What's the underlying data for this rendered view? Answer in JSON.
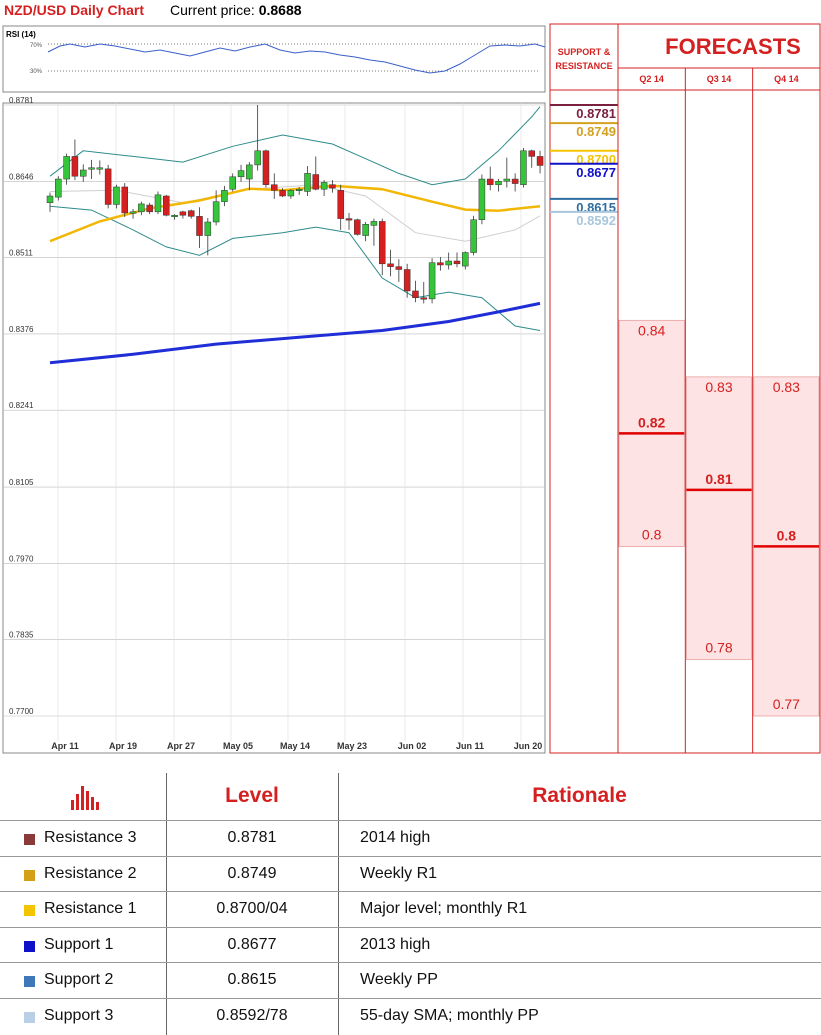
{
  "header": {
    "title": "NZD/USD Daily Chart",
    "price_label": "Current price:",
    "price_value": "0.8688"
  },
  "rsi": {
    "label": "RSI (14)",
    "upper": "70%",
    "lower": "30%"
  },
  "chart_data": {
    "type": "candlestick",
    "title": "NZD/USD Daily Chart",
    "y_tick_labels": [
      "0.8781",
      "0.8646",
      "0.8511",
      "0.8376",
      "0.8241",
      "0.8105",
      "0.7970",
      "0.7835",
      "0.7700"
    ],
    "ylim": [
      0.77,
      0.8781
    ],
    "x_tick_labels": [
      "Apr 11",
      "Apr 19",
      "Apr 27",
      "May 05",
      "May 14",
      "May 23",
      "Jun 02",
      "Jun 11",
      "Jun 20"
    ],
    "candles": [
      {
        "o": 0.8608,
        "h": 0.8626,
        "l": 0.8592,
        "c": 0.862
      },
      {
        "o": 0.8618,
        "h": 0.8655,
        "l": 0.8612,
        "c": 0.865
      },
      {
        "o": 0.865,
        "h": 0.8695,
        "l": 0.864,
        "c": 0.869
      },
      {
        "o": 0.869,
        "h": 0.872,
        "l": 0.8648,
        "c": 0.8655
      },
      {
        "o": 0.8655,
        "h": 0.8676,
        "l": 0.8645,
        "c": 0.8666
      },
      {
        "o": 0.8668,
        "h": 0.8684,
        "l": 0.865,
        "c": 0.867
      },
      {
        "o": 0.867,
        "h": 0.8683,
        "l": 0.8658,
        "c": 0.867
      },
      {
        "o": 0.8668,
        "h": 0.8675,
        "l": 0.8598,
        "c": 0.8605
      },
      {
        "o": 0.8605,
        "h": 0.864,
        "l": 0.8598,
        "c": 0.8636
      },
      {
        "o": 0.8636,
        "h": 0.8643,
        "l": 0.8583,
        "c": 0.859
      },
      {
        "o": 0.859,
        "h": 0.8597,
        "l": 0.858,
        "c": 0.8592
      },
      {
        "o": 0.8592,
        "h": 0.861,
        "l": 0.8586,
        "c": 0.8606
      },
      {
        "o": 0.8604,
        "h": 0.8608,
        "l": 0.8588,
        "c": 0.8592
      },
      {
        "o": 0.8592,
        "h": 0.8628,
        "l": 0.8588,
        "c": 0.8622
      },
      {
        "o": 0.862,
        "h": 0.8622,
        "l": 0.8584,
        "c": 0.8586
      },
      {
        "o": 0.8586,
        "h": 0.8588,
        "l": 0.8578,
        "c": 0.8586
      },
      {
        "o": 0.8592,
        "h": 0.8594,
        "l": 0.858,
        "c": 0.8586
      },
      {
        "o": 0.8594,
        "h": 0.8596,
        "l": 0.858,
        "c": 0.8584
      },
      {
        "o": 0.8584,
        "h": 0.86,
        "l": 0.8528,
        "c": 0.855
      },
      {
        "o": 0.855,
        "h": 0.8581,
        "l": 0.8515,
        "c": 0.8574
      },
      {
        "o": 0.8574,
        "h": 0.863,
        "l": 0.8568,
        "c": 0.861
      },
      {
        "o": 0.861,
        "h": 0.8638,
        "l": 0.8602,
        "c": 0.863
      },
      {
        "o": 0.8632,
        "h": 0.866,
        "l": 0.8628,
        "c": 0.8654
      },
      {
        "o": 0.8654,
        "h": 0.8675,
        "l": 0.8645,
        "c": 0.8665
      },
      {
        "o": 0.865,
        "h": 0.868,
        "l": 0.863,
        "c": 0.8675
      },
      {
        "o": 0.8675,
        "h": 0.8781,
        "l": 0.8665,
        "c": 0.87
      },
      {
        "o": 0.87,
        "h": 0.8702,
        "l": 0.8635,
        "c": 0.864
      },
      {
        "o": 0.864,
        "h": 0.866,
        "l": 0.8615,
        "c": 0.863
      },
      {
        "o": 0.863,
        "h": 0.8634,
        "l": 0.8618,
        "c": 0.862
      },
      {
        "o": 0.862,
        "h": 0.8632,
        "l": 0.8615,
        "c": 0.863
      },
      {
        "o": 0.863,
        "h": 0.8636,
        "l": 0.8622,
        "c": 0.8632
      },
      {
        "o": 0.8628,
        "h": 0.8673,
        "l": 0.862,
        "c": 0.866
      },
      {
        "o": 0.8658,
        "h": 0.869,
        "l": 0.863,
        "c": 0.8632
      },
      {
        "o": 0.8632,
        "h": 0.8648,
        "l": 0.862,
        "c": 0.8644
      },
      {
        "o": 0.864,
        "h": 0.8648,
        "l": 0.8626,
        "c": 0.8634
      },
      {
        "o": 0.863,
        "h": 0.864,
        "l": 0.856,
        "c": 0.858
      },
      {
        "o": 0.858,
        "h": 0.859,
        "l": 0.856,
        "c": 0.8578
      },
      {
        "o": 0.8578,
        "h": 0.858,
        "l": 0.855,
        "c": 0.8552
      },
      {
        "o": 0.855,
        "h": 0.8574,
        "l": 0.854,
        "c": 0.857
      },
      {
        "o": 0.8568,
        "h": 0.858,
        "l": 0.8532,
        "c": 0.8575
      },
      {
        "o": 0.8575,
        "h": 0.858,
        "l": 0.848,
        "c": 0.85
      },
      {
        "o": 0.85,
        "h": 0.8525,
        "l": 0.8478,
        "c": 0.8495
      },
      {
        "o": 0.8495,
        "h": 0.8508,
        "l": 0.8468,
        "c": 0.849
      },
      {
        "o": 0.849,
        "h": 0.85,
        "l": 0.844,
        "c": 0.8452
      },
      {
        "o": 0.8452,
        "h": 0.847,
        "l": 0.8432,
        "c": 0.844
      },
      {
        "o": 0.844,
        "h": 0.8468,
        "l": 0.843,
        "c": 0.8438
      },
      {
        "o": 0.8438,
        "h": 0.851,
        "l": 0.843,
        "c": 0.8502
      },
      {
        "o": 0.8502,
        "h": 0.8512,
        "l": 0.8488,
        "c": 0.8498
      },
      {
        "o": 0.8498,
        "h": 0.852,
        "l": 0.849,
        "c": 0.8505
      },
      {
        "o": 0.8505,
        "h": 0.852,
        "l": 0.8494,
        "c": 0.85
      },
      {
        "o": 0.8496,
        "h": 0.8522,
        "l": 0.849,
        "c": 0.852
      },
      {
        "o": 0.852,
        "h": 0.8585,
        "l": 0.8515,
        "c": 0.8578
      },
      {
        "o": 0.8578,
        "h": 0.8658,
        "l": 0.857,
        "c": 0.865
      },
      {
        "o": 0.865,
        "h": 0.8672,
        "l": 0.863,
        "c": 0.864
      },
      {
        "o": 0.864,
        "h": 0.865,
        "l": 0.8628,
        "c": 0.8646
      },
      {
        "o": 0.8646,
        "h": 0.8688,
        "l": 0.8635,
        "c": 0.865
      },
      {
        "o": 0.865,
        "h": 0.866,
        "l": 0.8628,
        "c": 0.8642
      },
      {
        "o": 0.864,
        "h": 0.8705,
        "l": 0.8635,
        "c": 0.87
      },
      {
        "o": 0.87,
        "h": 0.8702,
        "l": 0.867,
        "c": 0.869
      },
      {
        "o": 0.869,
        "h": 0.87,
        "l": 0.866,
        "c": 0.8674
      }
    ],
    "sma_55": {
      "color": "#f2b705",
      "points": [
        [
          0,
          0.854
        ],
        [
          6,
          0.8575
        ],
        [
          12,
          0.8598
        ],
        [
          18,
          0.8612
        ],
        [
          24,
          0.8633
        ],
        [
          28,
          0.863
        ],
        [
          34,
          0.8638
        ],
        [
          40,
          0.8632
        ],
        [
          46,
          0.861
        ],
        [
          50,
          0.8596
        ],
        [
          54,
          0.8594
        ],
        [
          59,
          0.8602
        ]
      ]
    },
    "sma_200": {
      "color": "#1f2ed6",
      "points": [
        [
          0,
          0.8325
        ],
        [
          10,
          0.834
        ],
        [
          20,
          0.8358
        ],
        [
          30,
          0.837
        ],
        [
          40,
          0.8382
        ],
        [
          48,
          0.8398
        ],
        [
          54,
          0.8415
        ],
        [
          59,
          0.843
        ]
      ]
    },
    "bollinger_upper": {
      "color": "#2e8b8b",
      "points": [
        [
          0,
          0.8655
        ],
        [
          4,
          0.87
        ],
        [
          10,
          0.869
        ],
        [
          16,
          0.868
        ],
        [
          22,
          0.8708
        ],
        [
          28,
          0.8728
        ],
        [
          34,
          0.8712
        ],
        [
          38,
          0.8686
        ],
        [
          42,
          0.866
        ],
        [
          46,
          0.864
        ],
        [
          50,
          0.865
        ],
        [
          54,
          0.87
        ],
        [
          58,
          0.876
        ],
        [
          59,
          0.8778
        ]
      ]
    },
    "bollinger_lower": {
      "color": "#2e8b8b",
      "points": [
        [
          0,
          0.8602
        ],
        [
          5,
          0.8595
        ],
        [
          10,
          0.856
        ],
        [
          14,
          0.853
        ],
        [
          18,
          0.8515
        ],
        [
          22,
          0.8545
        ],
        [
          28,
          0.8555
        ],
        [
          32,
          0.8565
        ],
        [
          36,
          0.8555
        ],
        [
          40,
          0.8475
        ],
        [
          44,
          0.844
        ],
        [
          48,
          0.845
        ],
        [
          52,
          0.844
        ],
        [
          56,
          0.839
        ],
        [
          59,
          0.8382
        ]
      ]
    },
    "bollinger_mid": {
      "color": "#cfcfcf",
      "points": [
        [
          0,
          0.8628
        ],
        [
          8,
          0.863
        ],
        [
          16,
          0.8608
        ],
        [
          24,
          0.8632
        ],
        [
          32,
          0.864
        ],
        [
          38,
          0.862
        ],
        [
          44,
          0.8555
        ],
        [
          50,
          0.854
        ],
        [
          56,
          0.856
        ],
        [
          59,
          0.8585
        ]
      ]
    }
  },
  "sr_panel": {
    "title_line1": "SUPPORT &",
    "title_line2": "RESISTANCE",
    "levels": [
      {
        "label": "0.8781",
        "value": 0.8781,
        "color": "#7a1f3d"
      },
      {
        "label": "0.8749",
        "value": 0.8749,
        "color": "#d4a020"
      },
      {
        "label": "0.8700",
        "value": 0.87,
        "color": "#f5c400"
      },
      {
        "label": "0.8677",
        "value": 0.8677,
        "color": "#1010c8"
      },
      {
        "label": "0.8615",
        "value": 0.8615,
        "color": "#2e6fa0"
      },
      {
        "label": "0.8592",
        "value": 0.8592,
        "color": "#a8c6dc"
      }
    ]
  },
  "forecasts": {
    "title": "FORECASTS",
    "columns": [
      {
        "label": "Q2 14",
        "high": 0.84,
        "mid": 0.82,
        "low": 0.8,
        "high_label": "0.84",
        "mid_label": "0.82",
        "low_label": "0.8"
      },
      {
        "label": "Q3 14",
        "high": 0.83,
        "mid": 0.81,
        "low": 0.78,
        "high_label": "0.83",
        "mid_label": "0.81",
        "low_label": "0.78"
      },
      {
        "label": "Q4 14",
        "high": 0.83,
        "mid": 0.8,
        "low": 0.77,
        "high_label": "0.83",
        "mid_label": "0.8",
        "low_label": "0.77"
      }
    ]
  },
  "table": {
    "header_level": "Level",
    "header_rationale": "Rationale",
    "rows": [
      {
        "name": "Resistance 3",
        "level": "0.8781",
        "rationale": "2014 high",
        "color": "#8b3a3a"
      },
      {
        "name": "Resistance 2",
        "level": "0.8749",
        "rationale": "Weekly R1",
        "color": "#d4a017"
      },
      {
        "name": "Resistance 1",
        "level": "0.8700/04",
        "rationale": "Major level; monthly R1",
        "color": "#f5c400"
      },
      {
        "name": "Support 1",
        "level": "0.8677",
        "rationale": "2013 high",
        "color": "#1010c8"
      },
      {
        "name": "Support 2",
        "level": "0.8615",
        "rationale": "Weekly PP",
        "color": "#3f78b8"
      },
      {
        "name": "Support 3",
        "level": "0.8592/78",
        "rationale": "55-day SMA; monthly PP",
        "color": "#b8cfe6"
      }
    ]
  }
}
